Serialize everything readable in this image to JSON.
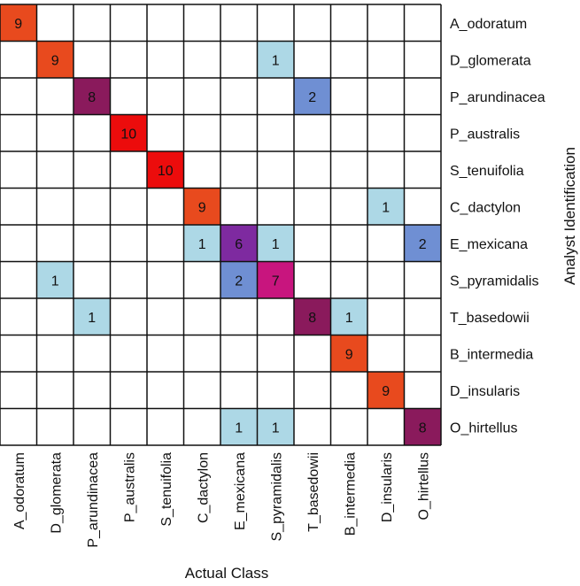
{
  "chart_data": {
    "type": "heatmap",
    "subtype": "confusion-matrix",
    "xlabel": "Actual Class",
    "ylabel": "Analyst Identification",
    "x_categories": [
      "A_odoratum",
      "D_glomerata",
      "P_arundinacea",
      "P_australis",
      "S_tenuifolia",
      "C_dactylon",
      "E_mexicana",
      "S_pyramidalis",
      "T_basedowii",
      "B_intermedia",
      "D_insularis",
      "O_hirtellus"
    ],
    "y_categories": [
      "A_odoratum",
      "D_glomerata",
      "P_arundinacea",
      "P_australis",
      "S_tenuifolia",
      "C_dactylon",
      "E_mexicana",
      "S_pyramidalis",
      "T_basedowii",
      "B_intermedia",
      "D_insularis",
      "O_hirtellus"
    ],
    "x_tick_rotation_deg": -90,
    "grid": true,
    "cells": [
      {
        "row": 0,
        "col": 0,
        "value": 9,
        "color": "#e84a1e"
      },
      {
        "row": 1,
        "col": 1,
        "value": 9,
        "color": "#e84a1e"
      },
      {
        "row": 1,
        "col": 7,
        "value": 1,
        "color": "#add8e6"
      },
      {
        "row": 2,
        "col": 2,
        "value": 8,
        "color": "#8a1a5c"
      },
      {
        "row": 2,
        "col": 8,
        "value": 2,
        "color": "#6f8fd3"
      },
      {
        "row": 3,
        "col": 3,
        "value": 10,
        "color": "#ec0c0c"
      },
      {
        "row": 4,
        "col": 4,
        "value": 10,
        "color": "#ec0c0c"
      },
      {
        "row": 5,
        "col": 5,
        "value": 9,
        "color": "#e84a1e"
      },
      {
        "row": 5,
        "col": 10,
        "value": 1,
        "color": "#add8e6"
      },
      {
        "row": 6,
        "col": 5,
        "value": 1,
        "color": "#add8e6"
      },
      {
        "row": 6,
        "col": 6,
        "value": 6,
        "color": "#7e2aa0"
      },
      {
        "row": 6,
        "col": 7,
        "value": 1,
        "color": "#add8e6"
      },
      {
        "row": 6,
        "col": 11,
        "value": 2,
        "color": "#6f8fd3"
      },
      {
        "row": 7,
        "col": 1,
        "value": 1,
        "color": "#add8e6"
      },
      {
        "row": 7,
        "col": 6,
        "value": 2,
        "color": "#6f8fd3"
      },
      {
        "row": 7,
        "col": 7,
        "value": 7,
        "color": "#c8157e"
      },
      {
        "row": 8,
        "col": 2,
        "value": 1,
        "color": "#add8e6"
      },
      {
        "row": 8,
        "col": 8,
        "value": 8,
        "color": "#8a1a5c"
      },
      {
        "row": 8,
        "col": 9,
        "value": 1,
        "color": "#add8e6"
      },
      {
        "row": 9,
        "col": 9,
        "value": 9,
        "color": "#e84a1e"
      },
      {
        "row": 10,
        "col": 10,
        "value": 9,
        "color": "#e84a1e"
      },
      {
        "row": 11,
        "col": 6,
        "value": 1,
        "color": "#add8e6"
      },
      {
        "row": 11,
        "col": 7,
        "value": 1,
        "color": "#add8e6"
      },
      {
        "row": 11,
        "col": 11,
        "value": 8,
        "color": "#8a1a5c"
      }
    ]
  }
}
